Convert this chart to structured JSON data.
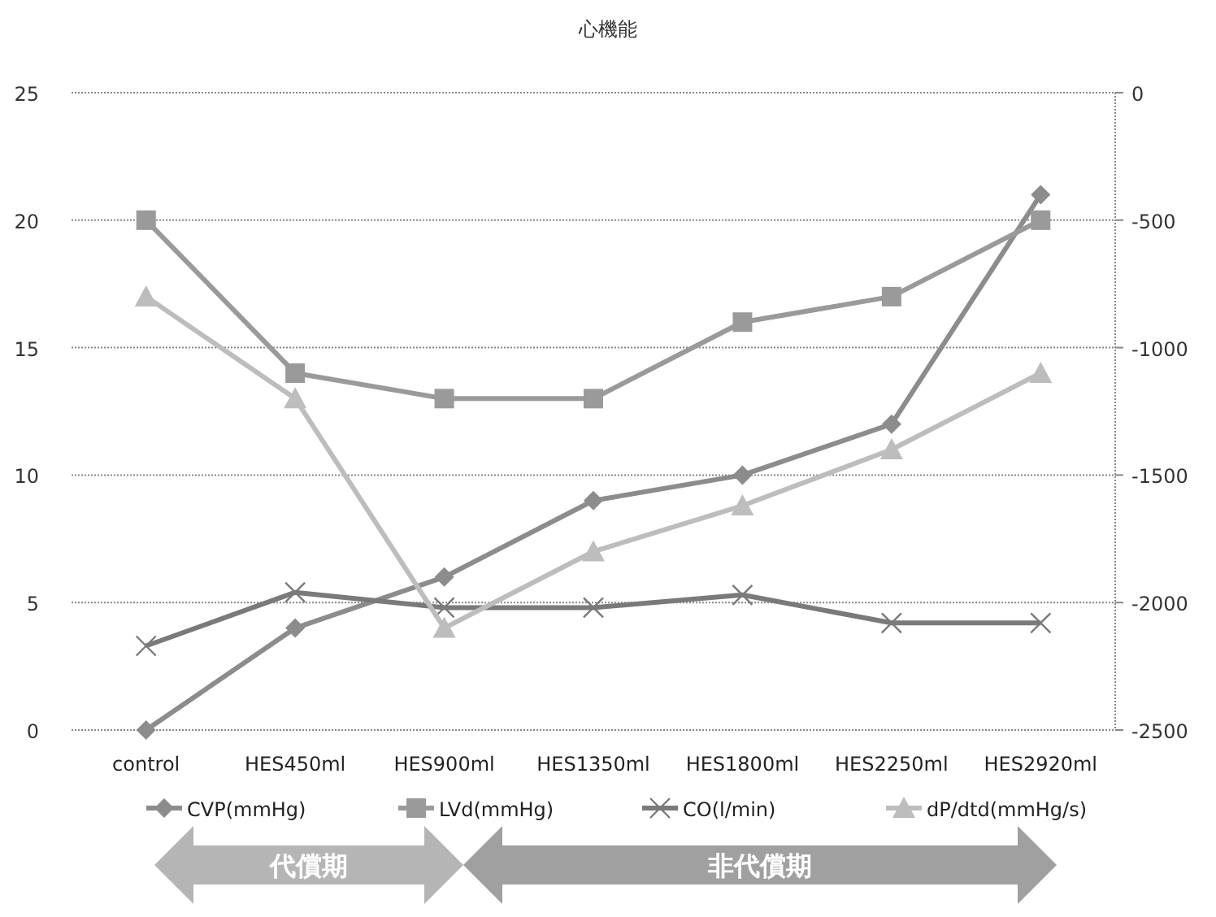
{
  "chart_data": {
    "type": "line",
    "title": "心機能",
    "categories": [
      "control",
      "HES450ml",
      "HES900ml",
      "HES1350ml",
      "HES1800ml",
      "HES2250ml",
      "HES2920ml"
    ],
    "series": [
      {
        "name": "CVP(mmHg)",
        "color": "#8c8c8c",
        "marker": "diamond",
        "values": [
          0,
          4,
          6,
          9,
          10,
          12,
          21
        ]
      },
      {
        "name": "LVd(mmHg)",
        "color": "#9a9a9a",
        "marker": "square",
        "values": [
          20,
          14,
          13,
          13,
          16,
          17,
          20
        ]
      },
      {
        "name": "CO(l/min)",
        "color": "#7a7a7a",
        "marker": "cross",
        "values": [
          3.3,
          5.4,
          4.8,
          4.8,
          5.3,
          4.2,
          4.2
        ]
      },
      {
        "name": "dP/dtd(mmHg/s)",
        "color": "#bdbdbd",
        "marker": "triangle",
        "axis": "y2",
        "values": [
          -800,
          -1200,
          -2100,
          -1800,
          -1620,
          -1400,
          -1100
        ]
      }
    ],
    "ylim": [
      0,
      25
    ],
    "yticks": [
      0,
      5,
      10,
      15,
      20,
      25
    ],
    "y2lim": [
      -2500,
      0
    ],
    "y2ticks": [
      -2500,
      -2000,
      -1500,
      -1000,
      -500,
      0
    ],
    "grid": "y",
    "legend": "bottom",
    "annotations": [
      "代償期",
      "非代償期"
    ]
  }
}
